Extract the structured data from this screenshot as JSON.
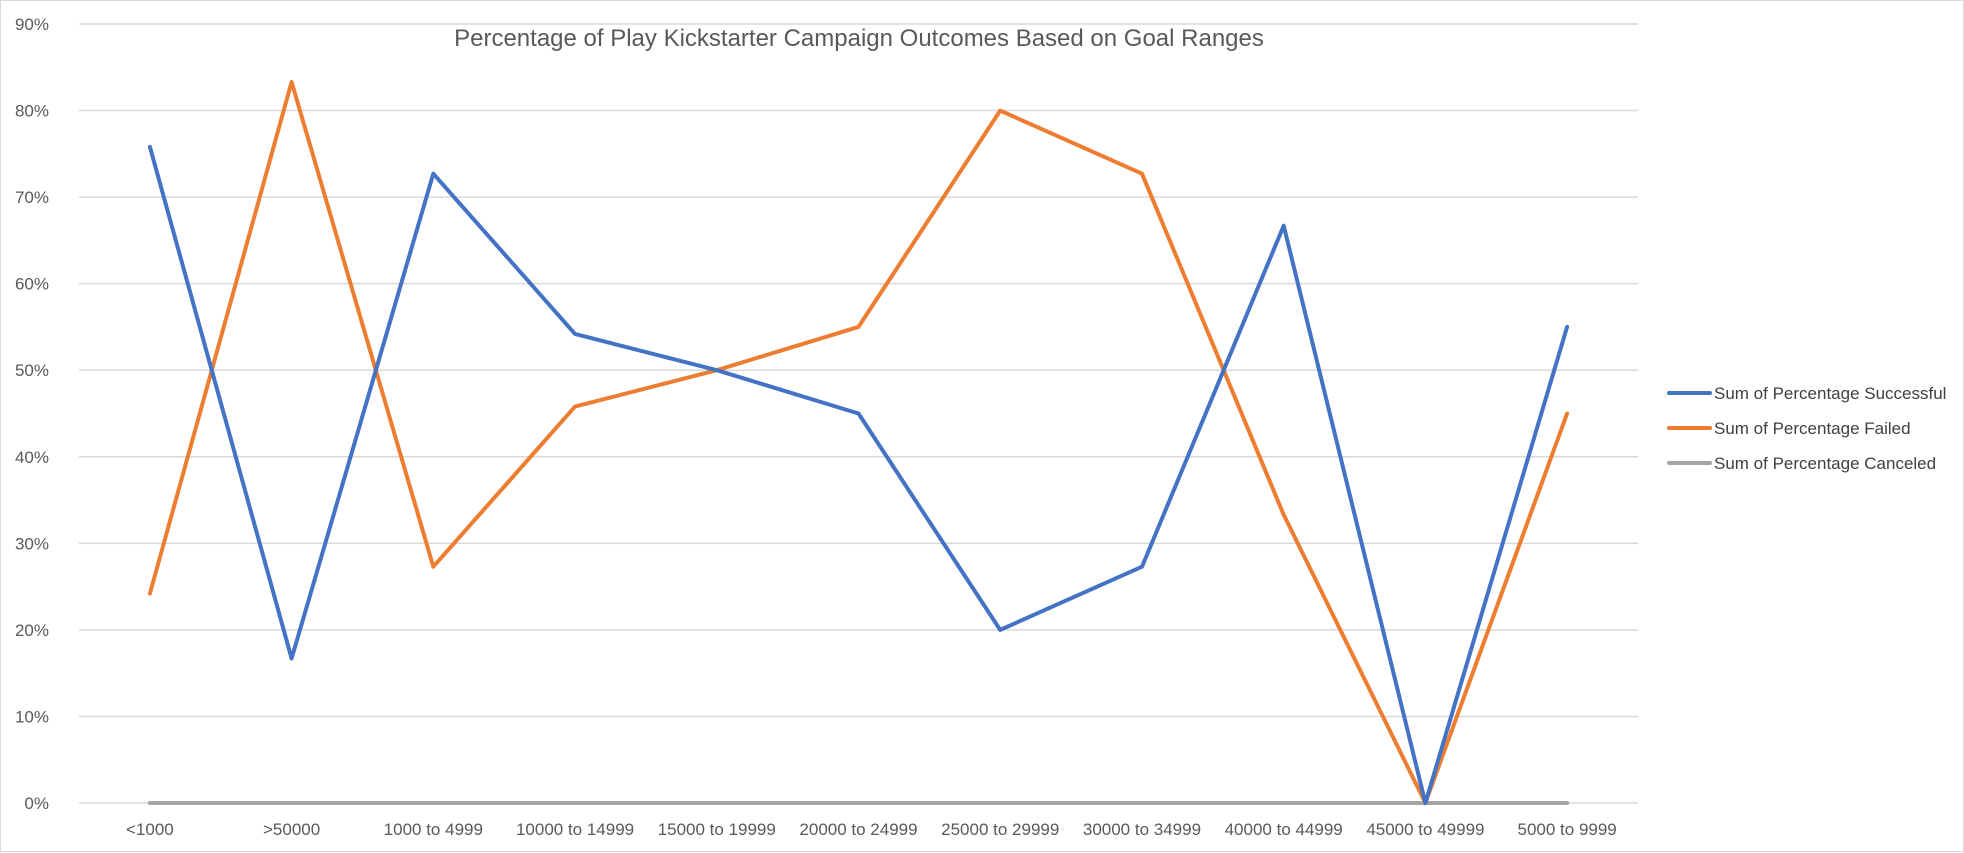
{
  "chart_data": {
    "type": "line",
    "title": "Percentage of Play Kickstarter Campaign Outcomes Based on Goal Ranges",
    "xlabel": "",
    "ylabel": "",
    "categories": [
      "<1000",
      ">50000",
      "1000 to 4999",
      "10000 to 14999",
      "15000 to 19999",
      "20000 to 24999",
      "25000 to 29999",
      "30000 to 34999",
      "40000 to 44999",
      "45000 to 49999",
      "5000 to 9999"
    ],
    "ylim": [
      0,
      0.9
    ],
    "yticks": [
      "0%",
      "10%",
      "20%",
      "30%",
      "40%",
      "50%",
      "60%",
      "70%",
      "80%",
      "90%"
    ],
    "grid": true,
    "legend_position": "right",
    "series": [
      {
        "name": "Sum of Percentage Successful",
        "color": "#4472C4",
        "values": [
          0.758,
          0.167,
          0.727,
          0.542,
          0.5,
          0.45,
          0.2,
          0.273,
          0.667,
          0.0,
          0.55
        ]
      },
      {
        "name": "Sum of Percentage Failed",
        "color": "#ED7D31",
        "values": [
          0.242,
          0.833,
          0.273,
          0.458,
          0.5,
          0.55,
          0.8,
          0.727,
          0.333,
          0.0,
          0.45
        ]
      },
      {
        "name": "Sum of Percentage Canceled",
        "color": "#A5A5A5",
        "values": [
          0,
          0,
          0,
          0,
          0,
          0,
          0,
          0,
          0,
          0,
          0
        ]
      }
    ]
  }
}
